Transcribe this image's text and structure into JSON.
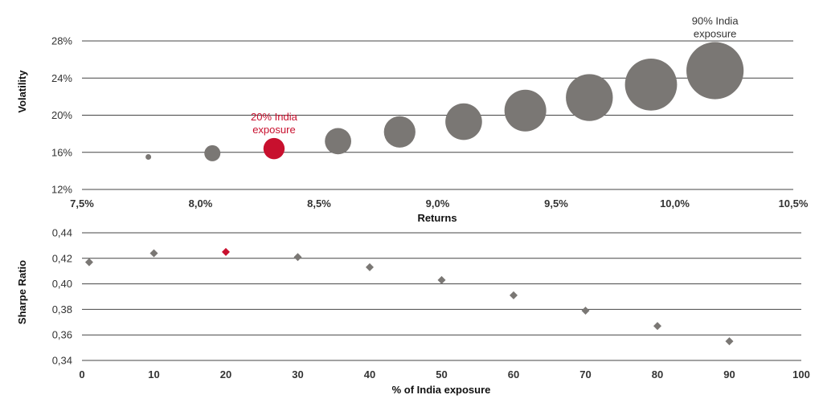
{
  "colors": {
    "bubble": "#7a7774",
    "highlight": "#c8102e",
    "diamond": "#7a7774",
    "gridline": "#444444",
    "annotation_dark": "#333333"
  },
  "chart_data": [
    {
      "type": "scatter",
      "subtype": "bubble",
      "xlabel": "Returns",
      "ylabel": "Volatility",
      "xlim": [
        7.5,
        10.5
      ],
      "ylim": [
        12,
        28
      ],
      "x_ticks": [
        "7,5%",
        "8,0%",
        "8,5%",
        "9,0%",
        "9,5%",
        "10,0%",
        "10,5%"
      ],
      "y_ticks": [
        "12%",
        "16%",
        "20%",
        "24%",
        "28%"
      ],
      "x_tick_values": [
        7.5,
        8.0,
        8.5,
        9.0,
        9.5,
        10.0,
        10.5
      ],
      "y_tick_values": [
        12,
        16,
        20,
        24,
        28
      ],
      "grid": "horizontal",
      "points": [
        {
          "x": 7.78,
          "y": 15.5,
          "india_exposure": 0,
          "highlight": false
        },
        {
          "x": 8.05,
          "y": 15.9,
          "india_exposure": 10,
          "highlight": false
        },
        {
          "x": 8.31,
          "y": 16.4,
          "india_exposure": 20,
          "highlight": true
        },
        {
          "x": 8.58,
          "y": 17.2,
          "india_exposure": 30,
          "highlight": false
        },
        {
          "x": 8.84,
          "y": 18.2,
          "india_exposure": 40,
          "highlight": false
        },
        {
          "x": 9.11,
          "y": 19.3,
          "india_exposure": 50,
          "highlight": false
        },
        {
          "x": 9.37,
          "y": 20.5,
          "india_exposure": 60,
          "highlight": false
        },
        {
          "x": 9.64,
          "y": 21.9,
          "india_exposure": 70,
          "highlight": false
        },
        {
          "x": 9.9,
          "y": 23.3,
          "india_exposure": 80,
          "highlight": false
        },
        {
          "x": 10.17,
          "y": 24.8,
          "india_exposure": 90,
          "highlight": false
        }
      ],
      "annotations": [
        {
          "lines": [
            "20% India",
            "exposure"
          ],
          "point_index": 2,
          "color_key": "highlight"
        },
        {
          "lines": [
            "90% India",
            "exposure"
          ],
          "point_index": 9,
          "color_key": "annotation_dark"
        }
      ]
    },
    {
      "type": "scatter",
      "marker": "diamond",
      "xlabel": "% of India exposure",
      "ylabel": "Sharpe Ratio",
      "xlim": [
        0,
        100
      ],
      "ylim": [
        0.34,
        0.44
      ],
      "x_ticks": [
        "0",
        "10",
        "20",
        "30",
        "40",
        "50",
        "60",
        "70",
        "80",
        "90",
        "100"
      ],
      "y_ticks": [
        "0,34",
        "0,36",
        "0,38",
        "0,40",
        "0,42",
        "0,44"
      ],
      "x_tick_values": [
        0,
        10,
        20,
        30,
        40,
        50,
        60,
        70,
        80,
        90,
        100
      ],
      "y_tick_values": [
        0.34,
        0.36,
        0.38,
        0.4,
        0.42,
        0.44
      ],
      "grid": "horizontal",
      "points": [
        {
          "x": 1,
          "y": 0.417,
          "highlight": false
        },
        {
          "x": 10,
          "y": 0.424,
          "highlight": false
        },
        {
          "x": 20,
          "y": 0.425,
          "highlight": true
        },
        {
          "x": 30,
          "y": 0.421,
          "highlight": false
        },
        {
          "x": 40,
          "y": 0.413,
          "highlight": false
        },
        {
          "x": 50,
          "y": 0.403,
          "highlight": false
        },
        {
          "x": 60,
          "y": 0.391,
          "highlight": false
        },
        {
          "x": 70,
          "y": 0.379,
          "highlight": false
        },
        {
          "x": 80,
          "y": 0.367,
          "highlight": false
        },
        {
          "x": 90,
          "y": 0.355,
          "highlight": false
        }
      ]
    }
  ]
}
